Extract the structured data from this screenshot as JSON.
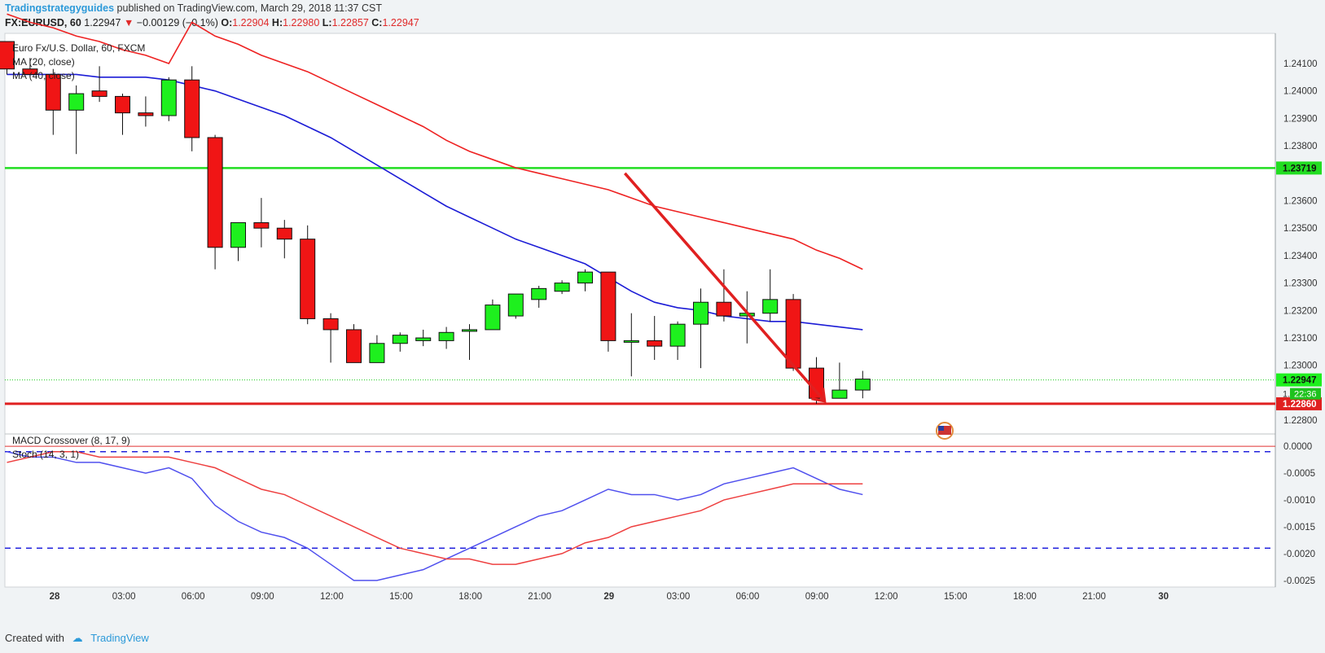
{
  "header": {
    "brand": "Tradingstrategyguides",
    "published": "published on TradingView.com, March 29, 2018 11:37 CST",
    "symbol": "FX:EURUSD, 60",
    "last": "1.22947",
    "change": "−0.00129 (−0.1%)",
    "o_label": "O:",
    "o_val": "1.22904",
    "h_label": "H:",
    "h_val": "1.22980",
    "l_label": "L:",
    "l_val": "1.22857",
    "c_label": "C:",
    "c_val": "1.22947"
  },
  "legend": {
    "title": "Euro Fx/U.S. Dollar, 60, FXCM",
    "ma20": "MA (20, close)",
    "ma40": "MA (40, close)",
    "macd": "MACD Crossover (8, 17, 9)",
    "stoch": "Stoch (14, 3, 1)"
  },
  "footer": {
    "created": "Created with",
    "brand": "TradingView"
  },
  "colors": {
    "up": "#1ef01e",
    "down": "#f01515",
    "ma_fast": "#1c1cd6",
    "ma_slow": "#ee2222",
    "support": "#e02020",
    "resistance": "#22dd22",
    "dashed": "#2222dd"
  },
  "chart_data": [
    {
      "type": "candlestick",
      "title": "Euro Fx/U.S. Dollar, 60, FXCM",
      "ylim": [
        1.2275,
        1.2418
      ],
      "y_ticks": [
        "1.24100",
        "1.24000",
        "1.23900",
        "1.23800",
        "1.23600",
        "1.23500",
        "1.23400",
        "1.23300",
        "1.23200",
        "1.23100",
        "1.23000",
        "1.22800"
      ],
      "x_ticks": [
        "28",
        "03:00",
        "06:00",
        "09:00",
        "12:00",
        "15:00",
        "18:00",
        "21:00",
        "29",
        "03:00",
        "06:00",
        "09:00",
        "12:00",
        "15:00",
        "18:00",
        "21:00",
        "30"
      ],
      "candles": [
        {
          "o": 1.2418,
          "h": 1.2418,
          "l": 1.2406,
          "c": 1.2408
        },
        {
          "o": 1.2408,
          "h": 1.2412,
          "l": 1.2405,
          "c": 1.2406
        },
        {
          "o": 1.2406,
          "h": 1.2408,
          "l": 1.2384,
          "c": 1.2393
        },
        {
          "o": 1.2393,
          "h": 1.2402,
          "l": 1.2377,
          "c": 1.2399
        },
        {
          "o": 1.24,
          "h": 1.2409,
          "l": 1.2396,
          "c": 1.2398
        },
        {
          "o": 1.2398,
          "h": 1.2399,
          "l": 1.2384,
          "c": 1.2392
        },
        {
          "o": 1.2392,
          "h": 1.2398,
          "l": 1.2387,
          "c": 1.2391
        },
        {
          "o": 1.2391,
          "h": 1.2405,
          "l": 1.2389,
          "c": 1.2404
        },
        {
          "o": 1.2404,
          "h": 1.2409,
          "l": 1.2378,
          "c": 1.2383
        },
        {
          "o": 1.2383,
          "h": 1.2384,
          "l": 1.2335,
          "c": 1.2343
        },
        {
          "o": 1.2343,
          "h": 1.2352,
          "l": 1.2338,
          "c": 1.2352
        },
        {
          "o": 1.2352,
          "h": 1.2361,
          "l": 1.2343,
          "c": 1.235
        },
        {
          "o": 1.235,
          "h": 1.2353,
          "l": 1.2339,
          "c": 1.2346
        },
        {
          "o": 1.2346,
          "h": 1.2351,
          "l": 1.2315,
          "c": 1.2317
        },
        {
          "o": 1.2317,
          "h": 1.2319,
          "l": 1.2301,
          "c": 1.2313
        },
        {
          "o": 1.2313,
          "h": 1.2315,
          "l": 1.2301,
          "c": 1.2301
        },
        {
          "o": 1.2301,
          "h": 1.2311,
          "l": 1.2301,
          "c": 1.2308
        },
        {
          "o": 1.2308,
          "h": 1.2312,
          "l": 1.2305,
          "c": 1.2311
        },
        {
          "o": 1.2309,
          "h": 1.2313,
          "l": 1.2307,
          "c": 1.231
        },
        {
          "o": 1.2309,
          "h": 1.2314,
          "l": 1.2306,
          "c": 1.2312
        },
        {
          "o": 1.2313,
          "h": 1.2315,
          "l": 1.2302,
          "c": 1.2313
        },
        {
          "o": 1.2313,
          "h": 1.2324,
          "l": 1.2313,
          "c": 1.2322
        },
        {
          "o": 1.2318,
          "h": 1.2326,
          "l": 1.2317,
          "c": 1.2326
        },
        {
          "o": 1.2324,
          "h": 1.2329,
          "l": 1.2321,
          "c": 1.2328
        },
        {
          "o": 1.2327,
          "h": 1.2331,
          "l": 1.2326,
          "c": 1.233
        },
        {
          "o": 1.233,
          "h": 1.2335,
          "l": 1.2327,
          "c": 1.2334
        },
        {
          "o": 1.2334,
          "h": 1.2334,
          "l": 1.2305,
          "c": 1.2309
        },
        {
          "o": 1.2309,
          "h": 1.2319,
          "l": 1.2296,
          "c": 1.2309
        },
        {
          "o": 1.2309,
          "h": 1.2318,
          "l": 1.2302,
          "c": 1.2307
        },
        {
          "o": 1.2307,
          "h": 1.2316,
          "l": 1.2302,
          "c": 1.2315
        },
        {
          "o": 1.2315,
          "h": 1.2328,
          "l": 1.2299,
          "c": 1.2323
        },
        {
          "o": 1.2323,
          "h": 1.2335,
          "l": 1.2316,
          "c": 1.2318
        },
        {
          "o": 1.2318,
          "h": 1.2327,
          "l": 1.2308,
          "c": 1.2319
        },
        {
          "o": 1.2319,
          "h": 1.2335,
          "l": 1.2316,
          "c": 1.2324
        },
        {
          "o": 1.2324,
          "h": 1.2326,
          "l": 1.2298,
          "c": 1.2299
        },
        {
          "o": 1.2299,
          "h": 1.2303,
          "l": 1.2286,
          "c": 1.2288
        },
        {
          "o": 1.2288,
          "h": 1.2301,
          "l": 1.2288,
          "c": 1.2291
        },
        {
          "o": 1.2291,
          "h": 1.2298,
          "l": 1.2288,
          "c": 1.2295
        }
      ],
      "ma20": [
        1.2406,
        1.2406,
        1.2406,
        1.2406,
        1.2405,
        1.2405,
        1.2405,
        1.2404,
        1.2402,
        1.24,
        1.2397,
        1.2394,
        1.2391,
        1.2387,
        1.2383,
        1.2378,
        1.2373,
        1.2368,
        1.2363,
        1.2358,
        1.2354,
        1.235,
        1.2346,
        1.2343,
        1.234,
        1.2337,
        1.2332,
        1.2327,
        1.2323,
        1.2321,
        1.232,
        1.2318,
        1.2317,
        1.2316,
        1.2316,
        1.2315,
        1.2314,
        1.2313
      ],
      "ma40": [
        1.2428,
        1.2425,
        1.2423,
        1.242,
        1.2418,
        1.2415,
        1.2413,
        1.241,
        1.2425,
        1.242,
        1.2417,
        1.2413,
        1.241,
        1.2407,
        1.2403,
        1.2399,
        1.2395,
        1.2391,
        1.2387,
        1.2382,
        1.2378,
        1.2375,
        1.2372,
        1.237,
        1.2368,
        1.2366,
        1.2364,
        1.2361,
        1.2358,
        1.2356,
        1.2354,
        1.2352,
        1.235,
        1.2348,
        1.2346,
        1.2342,
        1.2339,
        1.2335
      ],
      "support": {
        "value": 1.2286,
        "label": "1.22860"
      },
      "resistance": {
        "value": 1.23719,
        "label": "1.23719"
      },
      "last_price": {
        "value": 1.22947,
        "label": "1.22947"
      },
      "countdown_label": "22:36",
      "countdown_prefix": "1.",
      "trend_arrow": {
        "from": [
          27,
          1.237
        ],
        "to": [
          35,
          1.2287
        ]
      }
    },
    {
      "type": "line",
      "ylim": [
        -0.0027,
        0.0002
      ],
      "y_ticks": [
        "0.0000",
        "-0.0005",
        "-0.0010",
        "-0.0015",
        "-0.0020",
        "-0.0025"
      ],
      "series": [
        {
          "name": "MACD Crossover (8, 17, 9)",
          "values": [
            -0.0001,
            -0.0002,
            -0.0002,
            -0.0003,
            -0.0003,
            -0.0004,
            -0.0005,
            -0.0004,
            -0.0006,
            -0.0011,
            -0.0014,
            -0.0016,
            -0.0017,
            -0.0019,
            -0.0022,
            -0.0025,
            -0.0025,
            -0.0024,
            -0.0023,
            -0.0021,
            -0.0019,
            -0.0017,
            -0.0015,
            -0.0013,
            -0.0012,
            -0.001,
            -0.0008,
            -0.0009,
            -0.0009,
            -0.001,
            -0.0009,
            -0.0007,
            -0.0006,
            -0.0005,
            -0.0004,
            -0.0006,
            -0.0008,
            -0.0009
          ]
        },
        {
          "name": "Stoch (14, 3, 1)",
          "values": [
            -0.0003,
            -0.0002,
            -0.0001,
            -0.0001,
            -0.0002,
            -0.0002,
            -0.0002,
            -0.0002,
            -0.0003,
            -0.0004,
            -0.0006,
            -0.0008,
            -0.0009,
            -0.0011,
            -0.0013,
            -0.0015,
            -0.0017,
            -0.0019,
            -0.002,
            -0.0021,
            -0.0021,
            -0.0022,
            -0.0022,
            -0.0021,
            -0.002,
            -0.0018,
            -0.0017,
            -0.0015,
            -0.0014,
            -0.0013,
            -0.0012,
            -0.001,
            -0.0009,
            -0.0008,
            -0.0007,
            -0.0007,
            -0.0007,
            -0.0007
          ]
        }
      ],
      "hlines": [
        -0.0001,
        -0.0019,
        0.0
      ]
    }
  ]
}
